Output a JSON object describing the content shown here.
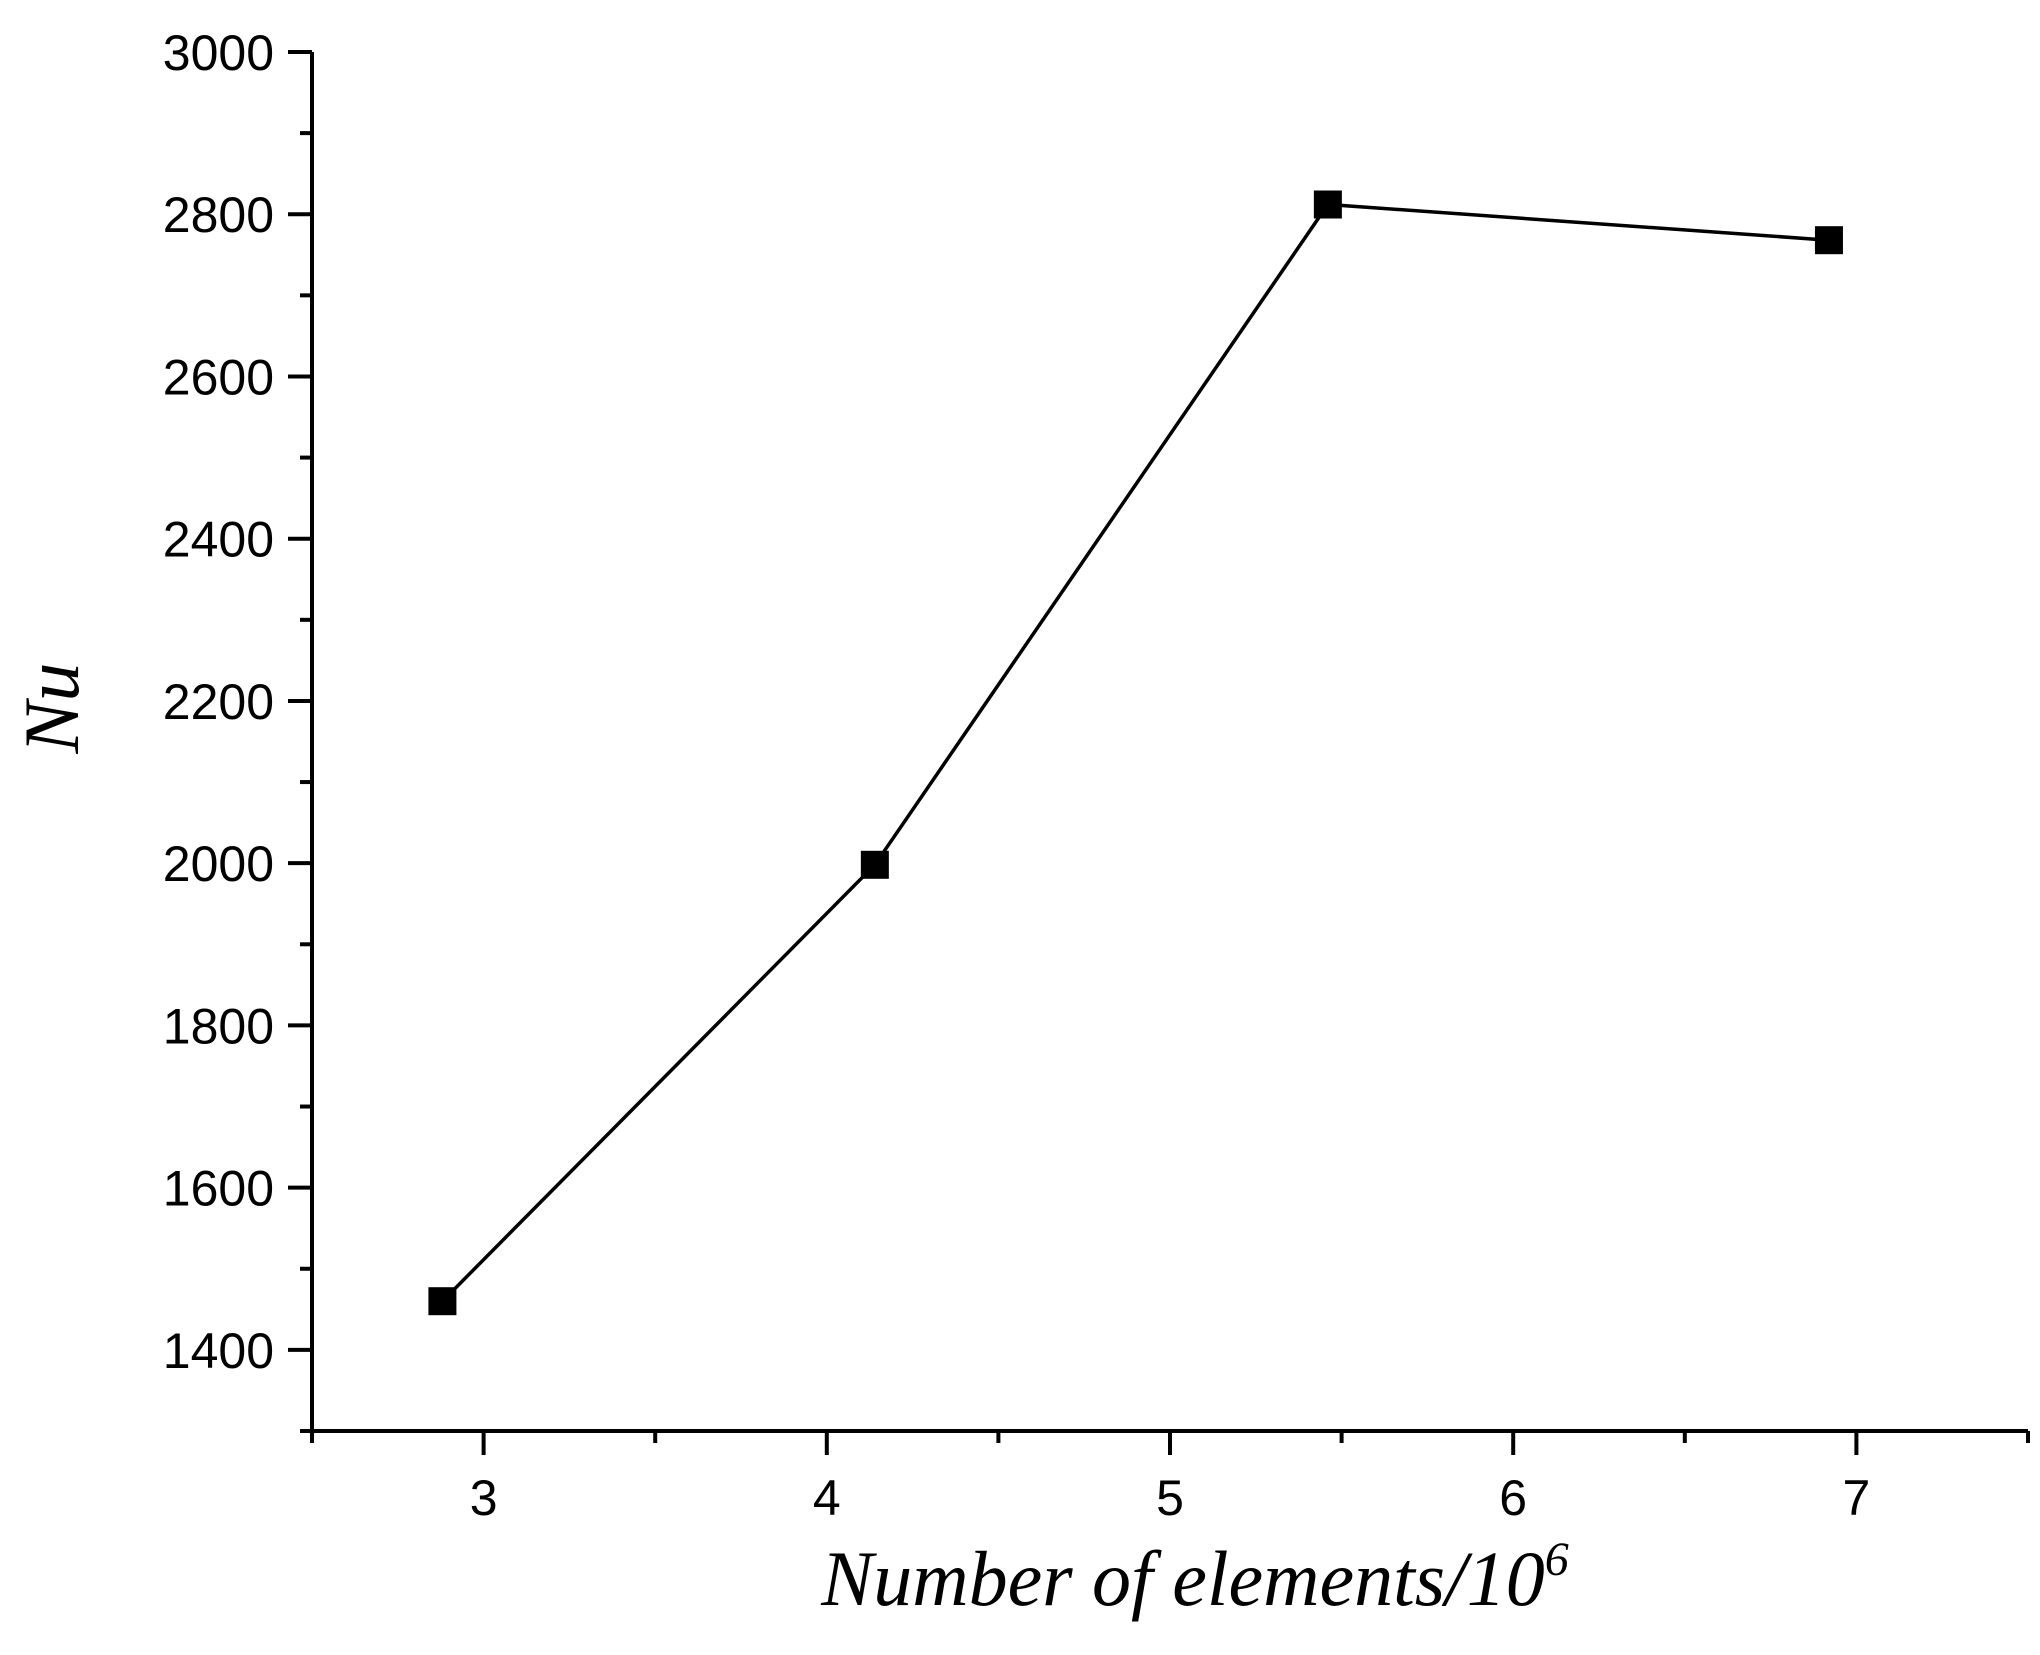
{
  "chart_data": {
    "type": "line",
    "xlabel": "Number of elements/10",
    "xlabel_superscript": "6",
    "ylabel": "Nu",
    "xlim": [
      2.5,
      7.5
    ],
    "ylim": [
      1300,
      3000
    ],
    "x_ticks": [
      3,
      4,
      5,
      6,
      7
    ],
    "x_tick_labels": [
      "3",
      "4",
      "5",
      "6",
      "7"
    ],
    "y_ticks": [
      1400,
      1600,
      1800,
      2000,
      2200,
      2400,
      2600,
      2800,
      3000
    ],
    "y_tick_labels": [
      "1400",
      "1600",
      "1800",
      "2000",
      "2200",
      "2400",
      "2600",
      "2800",
      "3000"
    ],
    "grid": false,
    "marker": "square",
    "colors": {
      "line": "#000000",
      "marker": "#000000",
      "axis": "#000000"
    },
    "series": [
      {
        "x": [
          2.88,
          4.14,
          5.46,
          6.92
        ],
        "y": [
          1460,
          1998,
          2812,
          2768
        ]
      }
    ]
  }
}
